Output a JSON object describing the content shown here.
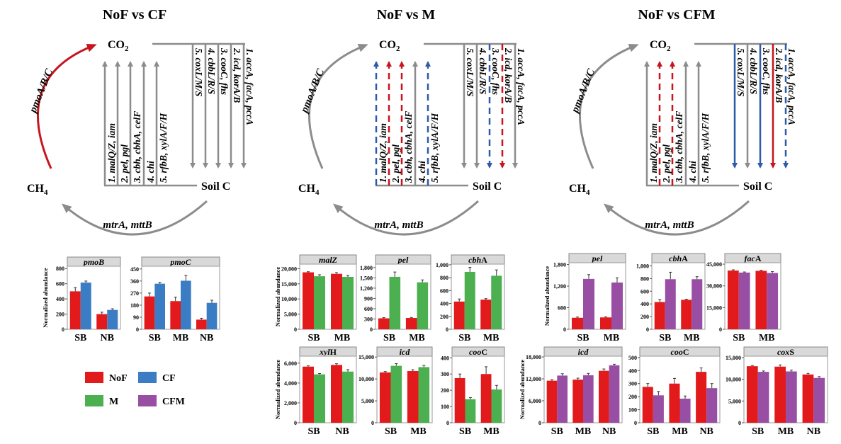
{
  "colors": {
    "NoF": "#e31a1c",
    "CF": "#3a7dc4",
    "M": "#4caf50",
    "CFM": "#984ea3",
    "gray": "#8c8c8c",
    "red": "#c8141e",
    "blue": "#2e5aa8"
  },
  "diagrams": [
    {
      "title": "NoF vs CF",
      "co2": "CO",
      "co2_sub": "2",
      "ch4": "CH",
      "ch4_sub": "4",
      "soil": "Soil C",
      "top_arc": {
        "label": "pmoA/B/C",
        "style": "red"
      },
      "bottom_arc": {
        "label": "mtrA, mttB",
        "style": "gray"
      },
      "up": [
        {
          "label": "1. malQ/Z, iam",
          "style": "gray"
        },
        {
          "label": "2. pel, pgl",
          "style": "gray"
        },
        {
          "label": "3. cbh, cbhA, celF",
          "style": "gray"
        },
        {
          "label": "4. chi",
          "style": "gray"
        },
        {
          "label": "5. rfbB, xylA/F/H",
          "style": "gray"
        }
      ],
      "down": [
        {
          "label": "1. accA, facA, pccA",
          "style": "gray"
        },
        {
          "label": "2. icd, korA/B",
          "style": "gray"
        },
        {
          "label": "3. cooC, fhs",
          "style": "gray"
        },
        {
          "label": "4. cbbL/R/S",
          "style": "gray"
        },
        {
          "label": "5. coxL/M/S",
          "style": "gray"
        }
      ]
    },
    {
      "title": "NoF vs M",
      "co2": "CO",
      "co2_sub": "2",
      "ch4": "CH",
      "ch4_sub": "4",
      "soil": "Soil C",
      "top_arc": {
        "label": "pmoA/B/C",
        "style": "gray"
      },
      "bottom_arc": {
        "label": "mtrA, mttB",
        "style": "gray"
      },
      "up": [
        {
          "label": "1. malQ/Z, iam",
          "style": "blue-dash"
        },
        {
          "label": "2. pel, pgl",
          "style": "red-dash"
        },
        {
          "label": "3. cbh, cbhA, celF",
          "style": "red-dash"
        },
        {
          "label": "4. chi",
          "style": "gray"
        },
        {
          "label": "5. rfbB, xylA/F/H",
          "style": "blue-dash"
        }
      ],
      "down": [
        {
          "label": "1. accA, facA, pccA",
          "style": "gray"
        },
        {
          "label": "2. icd, korA/B",
          "style": "red-dash"
        },
        {
          "label": "3. cooC, fhs",
          "style": "blue-dash"
        },
        {
          "label": "4. cbbL/R/S",
          "style": "gray"
        },
        {
          "label": "5. coxL/M/S",
          "style": "gray"
        }
      ]
    },
    {
      "title": "NoF vs CFM",
      "co2": "CO",
      "co2_sub": "2",
      "ch4": "CH",
      "ch4_sub": "4",
      "soil": "Soil C",
      "top_arc": {
        "label": "pmoA/B/C",
        "style": "gray"
      },
      "bottom_arc": {
        "label": "mtrA, mttB",
        "style": "gray"
      },
      "up": [
        {
          "label": "1. malQ/Z, iam",
          "style": "gray"
        },
        {
          "label": "2. pel, pgl",
          "style": "red-dash"
        },
        {
          "label": "3. cbh, cbhA, celF",
          "style": "red-dash"
        },
        {
          "label": "4. chi",
          "style": "gray"
        },
        {
          "label": "5. rfbB, xylA/F/H",
          "style": "gray"
        }
      ],
      "down": [
        {
          "label": "1. accA, facA, pccA",
          "style": "blue-dash"
        },
        {
          "label": "2. icd, korA/B",
          "style": "red"
        },
        {
          "label": "3. cooC, fhs",
          "style": "blue"
        },
        {
          "label": "4. cbbL/R/S",
          "style": "gray"
        },
        {
          "label": "5. coxL/M/S",
          "style": "blue"
        }
      ]
    }
  ],
  "legend": [
    {
      "name": "NoF",
      "color": "#e31a1c"
    },
    {
      "name": "CF",
      "color": "#3a7dc4"
    },
    {
      "name": "M",
      "color": "#4caf50"
    },
    {
      "name": "CFM",
      "color": "#984ea3"
    }
  ],
  "chart_data": [
    {
      "type": "bar",
      "title_it": "pmoB",
      "title_rest": "",
      "ylabel": "Normalized abundance",
      "ylim": [
        0,
        830
      ],
      "ticks": [
        0,
        200,
        400,
        600,
        800
      ],
      "categories": [
        "SB",
        "NB"
      ],
      "series": [
        {
          "name": "NoF",
          "values": [
            500,
            200
          ],
          "errors": [
            50,
            25
          ]
        },
        {
          "name": "CF",
          "values": [
            615,
            255
          ],
          "errors": [
            20,
            15
          ]
        }
      ]
    },
    {
      "type": "bar",
      "title_it": "pmoC",
      "title_rest": "",
      "ylabel": "",
      "ylim": [
        0,
        470
      ],
      "ticks": [
        0,
        90,
        180,
        270,
        360,
        450
      ],
      "categories": [
        "SB",
        "MB",
        "NB"
      ],
      "series": [
        {
          "name": "NoF",
          "values": [
            245,
            210,
            72
          ],
          "errors": [
            25,
            30,
            10
          ]
        },
        {
          "name": "CF",
          "values": [
            340,
            362,
            197
          ],
          "errors": [
            10,
            40,
            20
          ]
        }
      ]
    },
    {
      "type": "bar",
      "title_it": "malZ",
      "title_rest": "",
      "ylabel": "Normalized abundance",
      "ylim": [
        0,
        21500
      ],
      "ticks": [
        0,
        5000,
        10000,
        15000,
        20000
      ],
      "categories": [
        "SB",
        "MB"
      ],
      "series": [
        {
          "name": "NoF",
          "values": [
            18800,
            18300
          ],
          "errors": [
            200,
            400
          ]
        },
        {
          "name": "M",
          "values": [
            17500,
            17300
          ],
          "errors": [
            500,
            500
          ]
        }
      ]
    },
    {
      "type": "bar",
      "title_it": "pel",
      "title_rest": "",
      "ylabel": "",
      "ylim": [
        0,
        1900
      ],
      "ticks": [
        0,
        300,
        600,
        900,
        1200,
        1500,
        1800
      ],
      "categories": [
        "SB",
        "MB"
      ],
      "series": [
        {
          "name": "NoF",
          "values": [
            320,
            330
          ],
          "errors": [
            20,
            15
          ]
        },
        {
          "name": "M",
          "values": [
            1530,
            1370
          ],
          "errors": [
            140,
            70
          ]
        }
      ]
    },
    {
      "type": "bar",
      "title_it": "cbh",
      "title_rest": "A",
      "ylabel": "",
      "ylim": [
        0,
        1010
      ],
      "ticks": [
        0,
        200,
        400,
        600,
        800,
        1000
      ],
      "categories": [
        "SB",
        "MB"
      ],
      "series": [
        {
          "name": "NoF",
          "values": [
            430,
            460
          ],
          "errors": [
            40,
            15
          ]
        },
        {
          "name": "M",
          "values": [
            890,
            830
          ],
          "errors": [
            70,
            90
          ]
        }
      ]
    },
    {
      "type": "bar",
      "title_it": "xyl",
      "title_rest": "H",
      "ylabel": "Normalized abundance",
      "ylim": [
        0,
        6700
      ],
      "ticks": [
        0,
        2000,
        4000,
        6000
      ],
      "categories": [
        "SB",
        "NB"
      ],
      "series": [
        {
          "name": "NoF",
          "values": [
            5650,
            5820
          ],
          "errors": [
            80,
            120
          ]
        },
        {
          "name": "M",
          "values": [
            4870,
            5150
          ],
          "errors": [
            80,
            200
          ]
        }
      ]
    },
    {
      "type": "bar",
      "title_it": "icd",
      "title_rest": "",
      "ylabel": "",
      "ylim": [
        0,
        15200
      ],
      "ticks": [
        0,
        5000,
        10000,
        15000
      ],
      "categories": [
        "SB",
        "MB"
      ],
      "series": [
        {
          "name": "NoF",
          "values": [
            11500,
            11800
          ],
          "errors": [
            200,
            300
          ]
        },
        {
          "name": "M",
          "values": [
            13000,
            12700
          ],
          "errors": [
            500,
            400
          ]
        }
      ]
    },
    {
      "type": "bar",
      "title_it": "coo",
      "title_rest": "C",
      "ylabel": "",
      "ylim": [
        0,
        410
      ],
      "ticks": [
        0,
        100,
        200,
        300,
        400
      ],
      "categories": [
        "SB",
        "MB"
      ],
      "series": [
        {
          "name": "NoF",
          "values": [
            275,
            300
          ],
          "errors": [
            25,
            45
          ]
        },
        {
          "name": "M",
          "values": [
            145,
            205
          ],
          "errors": [
            10,
            25
          ]
        }
      ]
    },
    {
      "type": "bar",
      "title_it": "pel",
      "title_rest": "",
      "ylabel": "Normalized abundance",
      "ylim": [
        0,
        1850
      ],
      "ticks": [
        0,
        600,
        1200,
        1800
      ],
      "categories": [
        "SB",
        "MB"
      ],
      "series": [
        {
          "name": "NoF",
          "values": [
            320,
            330
          ],
          "errors": [
            20,
            15
          ]
        },
        {
          "name": "CFM",
          "values": [
            1400,
            1300
          ],
          "errors": [
            120,
            130
          ]
        }
      ]
    },
    {
      "type": "bar",
      "title_it": "cbh",
      "title_rest": "A",
      "ylabel": "",
      "ylim": [
        0,
        1050
      ],
      "ticks": [
        0,
        200,
        400,
        600,
        800,
        1000
      ],
      "categories": [
        "SB",
        "MB"
      ],
      "series": [
        {
          "name": "NoF",
          "values": [
            430,
            465
          ],
          "errors": [
            40,
            10
          ]
        },
        {
          "name": "CFM",
          "values": [
            790,
            790
          ],
          "errors": [
            110,
            40
          ]
        }
      ]
    },
    {
      "type": "bar",
      "title_it": "fac",
      "title_rest": "A",
      "ylabel": "",
      "ylim": [
        0,
        46000
      ],
      "ticks": [
        0,
        15000,
        30000,
        45000
      ],
      "categories": [
        "SB",
        "MB"
      ],
      "series": [
        {
          "name": "NoF",
          "values": [
            40600,
            40400
          ],
          "errors": [
            500,
            400
          ]
        },
        {
          "name": "CFM",
          "values": [
            39200,
            38900
          ],
          "errors": [
            400,
            1000
          ]
        }
      ]
    },
    {
      "type": "bar",
      "title_it": "icd",
      "title_rest": "",
      "ylabel": "Normalized abundance",
      "ylim": [
        0,
        18200
      ],
      "ticks": [
        0,
        6000,
        12000,
        18000
      ],
      "categories": [
        "SB",
        "MB",
        "NB"
      ],
      "series": [
        {
          "name": "NoF",
          "values": [
            11500,
            11800,
            14200
          ],
          "errors": [
            300,
            400,
            500
          ]
        },
        {
          "name": "CFM",
          "values": [
            12900,
            13000,
            15700
          ],
          "errors": [
            500,
            500,
            300
          ]
        }
      ]
    },
    {
      "type": "bar",
      "title_it": "coo",
      "title_rest": "C",
      "ylabel": "",
      "ylim": [
        0,
        510
      ],
      "ticks": [
        0,
        100,
        200,
        300,
        400,
        500
      ],
      "categories": [
        "SB",
        "MB",
        "NB"
      ],
      "series": [
        {
          "name": "NoF",
          "values": [
            275,
            300,
            390
          ],
          "errors": [
            25,
            40,
            30
          ]
        },
        {
          "name": "CFM",
          "values": [
            210,
            185,
            265
          ],
          "errors": [
            30,
            20,
            35
          ]
        }
      ]
    },
    {
      "type": "bar",
      "title_it": "cox",
      "title_rest": "S",
      "ylabel": "",
      "ylim": [
        0,
        15300
      ],
      "ticks": [
        0,
        5000,
        10000,
        15000
      ],
      "categories": [
        "SB",
        "MB",
        "NB"
      ],
      "series": [
        {
          "name": "NoF",
          "values": [
            13000,
            12900,
            11100
          ],
          "errors": [
            150,
            400,
            250
          ]
        },
        {
          "name": "CFM",
          "values": [
            11700,
            11800,
            10300
          ],
          "errors": [
            200,
            300,
            300
          ]
        }
      ]
    }
  ]
}
